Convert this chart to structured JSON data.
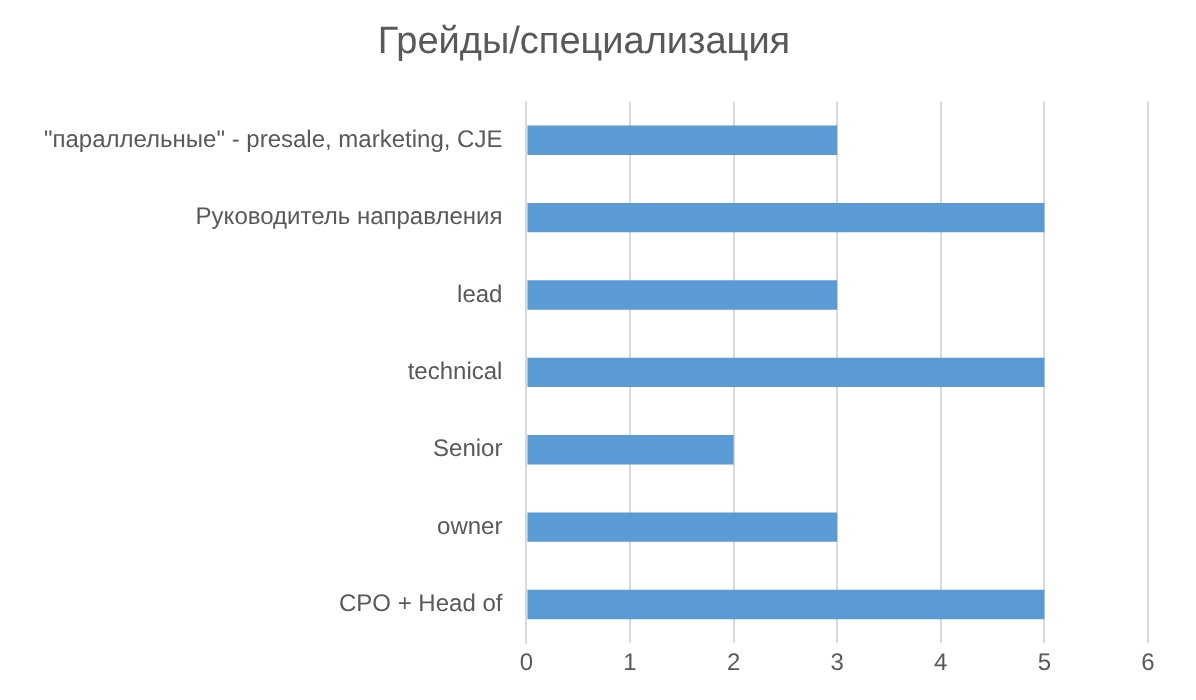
{
  "chart_data": {
    "type": "bar",
    "orientation": "horizontal",
    "title": "Грейды/специализация",
    "categories": [
      "\"параллельные\" - presale, marketing, CJE",
      "Руководитель направления",
      "lead",
      "technical",
      "Senior",
      "owner",
      "CPO + Head of"
    ],
    "values": [
      3,
      5,
      3,
      5,
      2,
      3,
      5
    ],
    "color": "#5b9bd5",
    "xlim": [
      0,
      6
    ],
    "xticks": [
      0,
      1,
      2,
      3,
      4,
      5,
      6
    ],
    "grid": "x",
    "legend": false
  }
}
